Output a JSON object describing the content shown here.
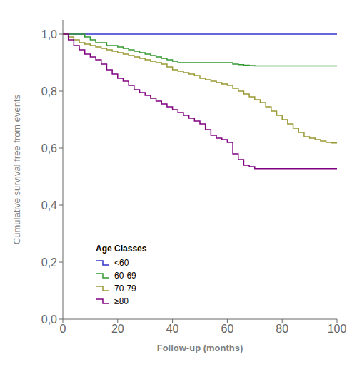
{
  "chart_data": {
    "type": "step",
    "title": "",
    "x_label": "Follow-up (months)",
    "y_label": "Cumulative survival free from events",
    "xlim": [
      0,
      100
    ],
    "ylim": [
      0.0,
      1.05
    ],
    "xticks": [
      0,
      20,
      40,
      60,
      80,
      100
    ],
    "yticks": [
      {
        "value": 0.0,
        "label": "0,0"
      },
      {
        "value": 0.2,
        "label": "0,2"
      },
      {
        "value": 0.4,
        "label": "0,4"
      },
      {
        "value": 0.6,
        "label": "0,6"
      },
      {
        "value": 0.8,
        "label": "0,8"
      },
      {
        "value": 1.0,
        "label": "1,0"
      }
    ],
    "grid": false,
    "legend": "lower left",
    "legend_title": "Age Classes",
    "series": [
      {
        "name": "<60",
        "color": "#3333cc",
        "x": [
          0,
          100
        ],
        "values": [
          1.0,
          1.0
        ]
      },
      {
        "name": "60-69",
        "color": "#339933",
        "x": [
          0,
          5,
          8,
          10,
          12,
          14,
          16,
          18,
          20,
          22,
          24,
          26,
          28,
          30,
          32,
          34,
          36,
          38,
          40,
          42,
          44,
          46,
          48,
          50,
          52,
          54,
          56,
          58,
          60,
          62,
          64,
          66,
          68,
          70,
          72,
          74,
          100
        ],
        "values": [
          1.0,
          1.0,
          0.99,
          0.98,
          0.97,
          0.97,
          0.96,
          0.96,
          0.955,
          0.95,
          0.945,
          0.94,
          0.935,
          0.93,
          0.925,
          0.92,
          0.915,
          0.91,
          0.905,
          0.9,
          0.9,
          0.9,
          0.9,
          0.9,
          0.9,
          0.9,
          0.9,
          0.9,
          0.9,
          0.895,
          0.893,
          0.891,
          0.89,
          0.889,
          0.889,
          0.889,
          0.889
        ]
      },
      {
        "name": "70-79",
        "color": "#999933",
        "x": [
          0,
          2,
          4,
          6,
          8,
          10,
          12,
          14,
          16,
          18,
          20,
          22,
          24,
          26,
          28,
          30,
          32,
          34,
          36,
          38,
          40,
          42,
          44,
          46,
          48,
          50,
          52,
          54,
          56,
          58,
          60,
          62,
          64,
          66,
          68,
          70,
          72,
          74,
          76,
          78,
          80,
          82,
          84,
          86,
          88,
          90,
          92,
          94,
          96,
          98,
          100
        ],
        "values": [
          1.0,
          0.99,
          0.98,
          0.97,
          0.965,
          0.96,
          0.955,
          0.95,
          0.945,
          0.94,
          0.935,
          0.93,
          0.925,
          0.92,
          0.915,
          0.91,
          0.905,
          0.9,
          0.895,
          0.885,
          0.875,
          0.87,
          0.865,
          0.86,
          0.855,
          0.845,
          0.84,
          0.835,
          0.83,
          0.825,
          0.82,
          0.81,
          0.8,
          0.79,
          0.78,
          0.77,
          0.76,
          0.745,
          0.73,
          0.715,
          0.7,
          0.685,
          0.67,
          0.655,
          0.64,
          0.635,
          0.63,
          0.625,
          0.62,
          0.618,
          0.617
        ]
      },
      {
        "name": "≥80",
        "color": "#800080",
        "x": [
          0,
          2,
          4,
          6,
          8,
          10,
          12,
          14,
          16,
          18,
          20,
          22,
          24,
          26,
          28,
          30,
          32,
          34,
          36,
          38,
          40,
          42,
          44,
          46,
          48,
          50,
          52,
          54,
          56,
          58,
          60,
          62,
          64,
          66,
          68,
          70,
          72,
          100
        ],
        "values": [
          1.0,
          0.98,
          0.96,
          0.945,
          0.93,
          0.92,
          0.91,
          0.895,
          0.875,
          0.86,
          0.845,
          0.835,
          0.82,
          0.805,
          0.795,
          0.785,
          0.775,
          0.765,
          0.755,
          0.745,
          0.735,
          0.725,
          0.715,
          0.705,
          0.695,
          0.685,
          0.665,
          0.645,
          0.635,
          0.63,
          0.62,
          0.58,
          0.56,
          0.54,
          0.535,
          0.528,
          0.528,
          0.528
        ]
      }
    ]
  }
}
